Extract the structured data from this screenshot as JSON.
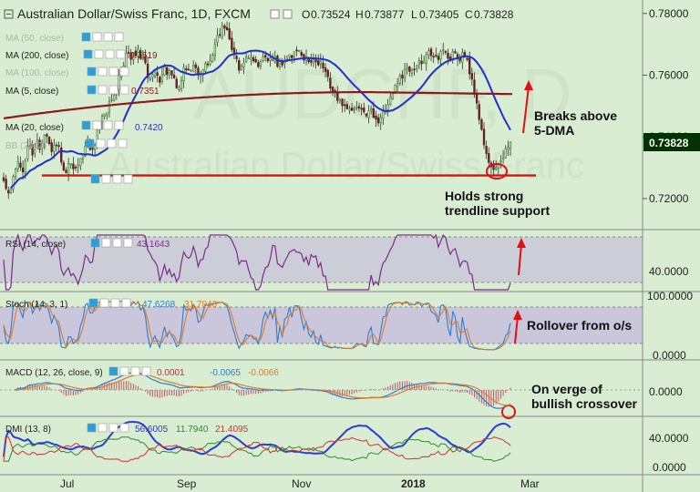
{
  "header": {
    "title": "Australian Dollar/Swiss Franc, 1D, FXCM",
    "open_label": "O",
    "open": "0.73524",
    "high_label": "H",
    "high": "0.73877",
    "low_label": "L",
    "low": "0.73405",
    "close_label": "C",
    "close": "0.73828"
  },
  "watermark": {
    "line1": "AUDCHF, D",
    "line2": "Australian Dollar/Swiss Franc"
  },
  "price_axis": {
    "ticks": [
      {
        "label": "0.78000",
        "value": 0.78
      },
      {
        "label": "0.76000",
        "value": 0.76
      },
      {
        "label": "0.74000",
        "value": 0.74
      },
      {
        "label": "0.72000",
        "value": 0.72
      }
    ],
    "last_price": "0.73828",
    "last_price_color": "#003300"
  },
  "indicators": {
    "ma50": {
      "label": "MA (50, close)"
    },
    "ma200": {
      "label": "MA (200, close)",
      "value": "0.7519",
      "color": "#8b1a1a"
    },
    "ma100": {
      "label": "MA (100, close)"
    },
    "ma5": {
      "label": "MA (5, close)",
      "value": "0.7351",
      "color": "#8b1a1a"
    },
    "ma20": {
      "label": "MA (20, close)",
      "value": "0.7420",
      "color": "#1f2fd1"
    },
    "bb": {
      "label": "BB (20, 2)"
    }
  },
  "rsi": {
    "label": "RSI (14, close)",
    "value": "43.1643",
    "color": "#7b2c8a",
    "axis_label": "40.0000"
  },
  "stoch": {
    "label": "Stoch (14, 3, 1)",
    "k_value": "47.6268",
    "d_value": "31.7048",
    "k_color": "#2a7fd4",
    "d_color": "#e07b2a",
    "axis_top": "100.0000",
    "axis_bottom": "0.0000"
  },
  "macd": {
    "label": "MACD (12, 26, close, 9)",
    "hist": "0.0001",
    "macd": "-0.0065",
    "signal": "-0.0066",
    "axis_label": "0.0000",
    "macd_color": "#2a7fd4",
    "signal_color": "#e07b2a",
    "hist_color": "#c0304a"
  },
  "dmi": {
    "label": "DMI (13, 8)",
    "adx": "56.6005",
    "plus": "11.7940",
    "minus": "21.4095",
    "adx_color": "#2b3bd6",
    "plus_color": "#2f8a2f",
    "minus_color": "#d43030",
    "axis_top": "40.0000",
    "axis_bottom": "0.0000"
  },
  "time_axis": [
    "Jul",
    "Sep",
    "Nov",
    "2018",
    "Mar"
  ],
  "annotations": {
    "breaks": [
      "Breaks above",
      "5-DMA"
    ],
    "holds": [
      "Holds strong",
      "trendline support"
    ],
    "rollover": "Rollover from o/s",
    "crossover": [
      "On verge of",
      "bullish crossover"
    ]
  },
  "chart_data": {
    "type": "candlestick",
    "symbol": "Australian Dollar/Swiss Franc",
    "timeframe": "1D",
    "ylim": [
      0.712,
      0.782
    ],
    "support_level": 0.7275,
    "closes": [
      0.7258,
      0.7232,
      0.7218,
      0.7232,
      0.7271,
      0.7295,
      0.7319,
      0.7301,
      0.7286,
      0.7322,
      0.737,
      0.738,
      0.7341,
      0.7358,
      0.739,
      0.7359,
      0.7379,
      0.7406,
      0.7402,
      0.7378,
      0.7352,
      0.7372,
      0.7373,
      0.7369,
      0.7318,
      0.7292,
      0.7284,
      0.7314,
      0.7313,
      0.7296,
      0.73,
      0.7309,
      0.733,
      0.7342,
      0.737,
      0.738,
      0.7359,
      0.7359,
      0.7372,
      0.7423,
      0.7443,
      0.7467,
      0.7474,
      0.7478,
      0.7514,
      0.7521,
      0.7536,
      0.7557,
      0.7599,
      0.7622,
      0.763,
      0.7671,
      0.7671,
      0.7651,
      0.7674,
      0.7663,
      0.7683,
      0.7654,
      0.7665,
      0.764,
      0.7592,
      0.7589,
      0.7602,
      0.7613,
      0.7599,
      0.7577,
      0.7603,
      0.7626,
      0.7603,
      0.7616,
      0.76,
      0.7591,
      0.7559,
      0.756,
      0.7581,
      0.7625,
      0.7617,
      0.7619,
      0.7616,
      0.7631,
      0.7624,
      0.76,
      0.7603,
      0.7617,
      0.7638,
      0.7635,
      0.7646,
      0.7665,
      0.7701,
      0.7728,
      0.7729,
      0.776,
      0.7752,
      0.7747,
      0.7717,
      0.7683,
      0.7666,
      0.7653,
      0.7616,
      0.763,
      0.7639,
      0.7659,
      0.7655,
      0.7657,
      0.7646,
      0.7643,
      0.7628,
      0.7644,
      0.7659,
      0.7658,
      0.7646,
      0.7655,
      0.765,
      0.7662,
      0.7628,
      0.7644,
      0.7633,
      0.7651,
      0.7653,
      0.7667,
      0.7656,
      0.7676,
      0.7681,
      0.768,
      0.7664,
      0.7649,
      0.7659,
      0.7643,
      0.7642,
      0.765,
      0.7643,
      0.7633,
      0.7645,
      0.7623,
      0.7612,
      0.7595,
      0.7558,
      0.7546,
      0.7549,
      0.7518,
      0.7519,
      0.7501,
      0.7501,
      0.7491,
      0.7491,
      0.7485,
      0.7491,
      0.7497,
      0.7493,
      0.7489,
      0.7481,
      0.7468,
      0.7484,
      0.7491,
      0.7463,
      0.7457,
      0.7445,
      0.7463,
      0.7482,
      0.7483,
      0.7504,
      0.7528,
      0.754,
      0.7567,
      0.7574,
      0.7598,
      0.759,
      0.7619,
      0.7625,
      0.7612,
      0.7617,
      0.7617,
      0.7631,
      0.7646,
      0.7637,
      0.7643,
      0.7667,
      0.7679,
      0.7663,
      0.7659,
      0.7662,
      0.765,
      0.7677,
      0.7683,
      0.7677,
      0.7654,
      0.7647,
      0.7677,
      0.7672,
      0.7653,
      0.7646,
      0.7673,
      0.7659,
      0.765,
      0.7604,
      0.7587,
      0.7537,
      0.7509,
      0.7456,
      0.7424,
      0.7374,
      0.7346,
      0.7317,
      0.7303,
      0.7294,
      0.7301,
      0.7314,
      0.7322,
      0.7333,
      0.7362,
      0.7366,
      0.7383
    ]
  }
}
